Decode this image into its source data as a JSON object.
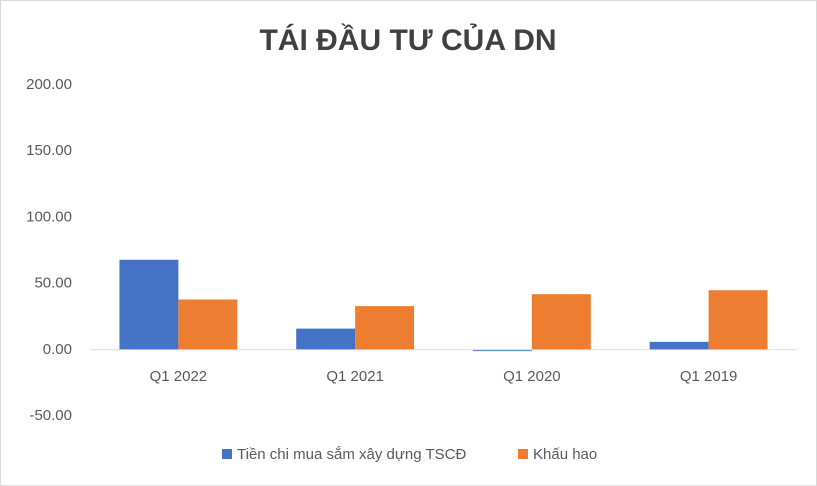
{
  "chart_data": {
    "type": "bar",
    "title": "TÁI ĐẦU TƯ CỦA DN",
    "categories": [
      "Q1 2022",
      "Q1 2021",
      "Q1 2020",
      "Q1 2019"
    ],
    "series": [
      {
        "name": "Tiền chi mua sắm xây dựng TSCĐ",
        "color": "#4472c4",
        "values": [
          68,
          16,
          -1,
          6
        ]
      },
      {
        "name": "Khấu hao",
        "color": "#ed7d31",
        "values": [
          38,
          33,
          42,
          45
        ]
      }
    ],
    "ylim": [
      -50,
      200
    ],
    "yticks": [
      {
        "value": -50,
        "label": "-50.00"
      },
      {
        "value": 0,
        "label": "0.00"
      },
      {
        "value": 50,
        "label": "50.00"
      },
      {
        "value": 100,
        "label": "100.00"
      },
      {
        "value": 150,
        "label": "150.00"
      },
      {
        "value": 200,
        "label": "200.00"
      }
    ],
    "grid": false
  }
}
